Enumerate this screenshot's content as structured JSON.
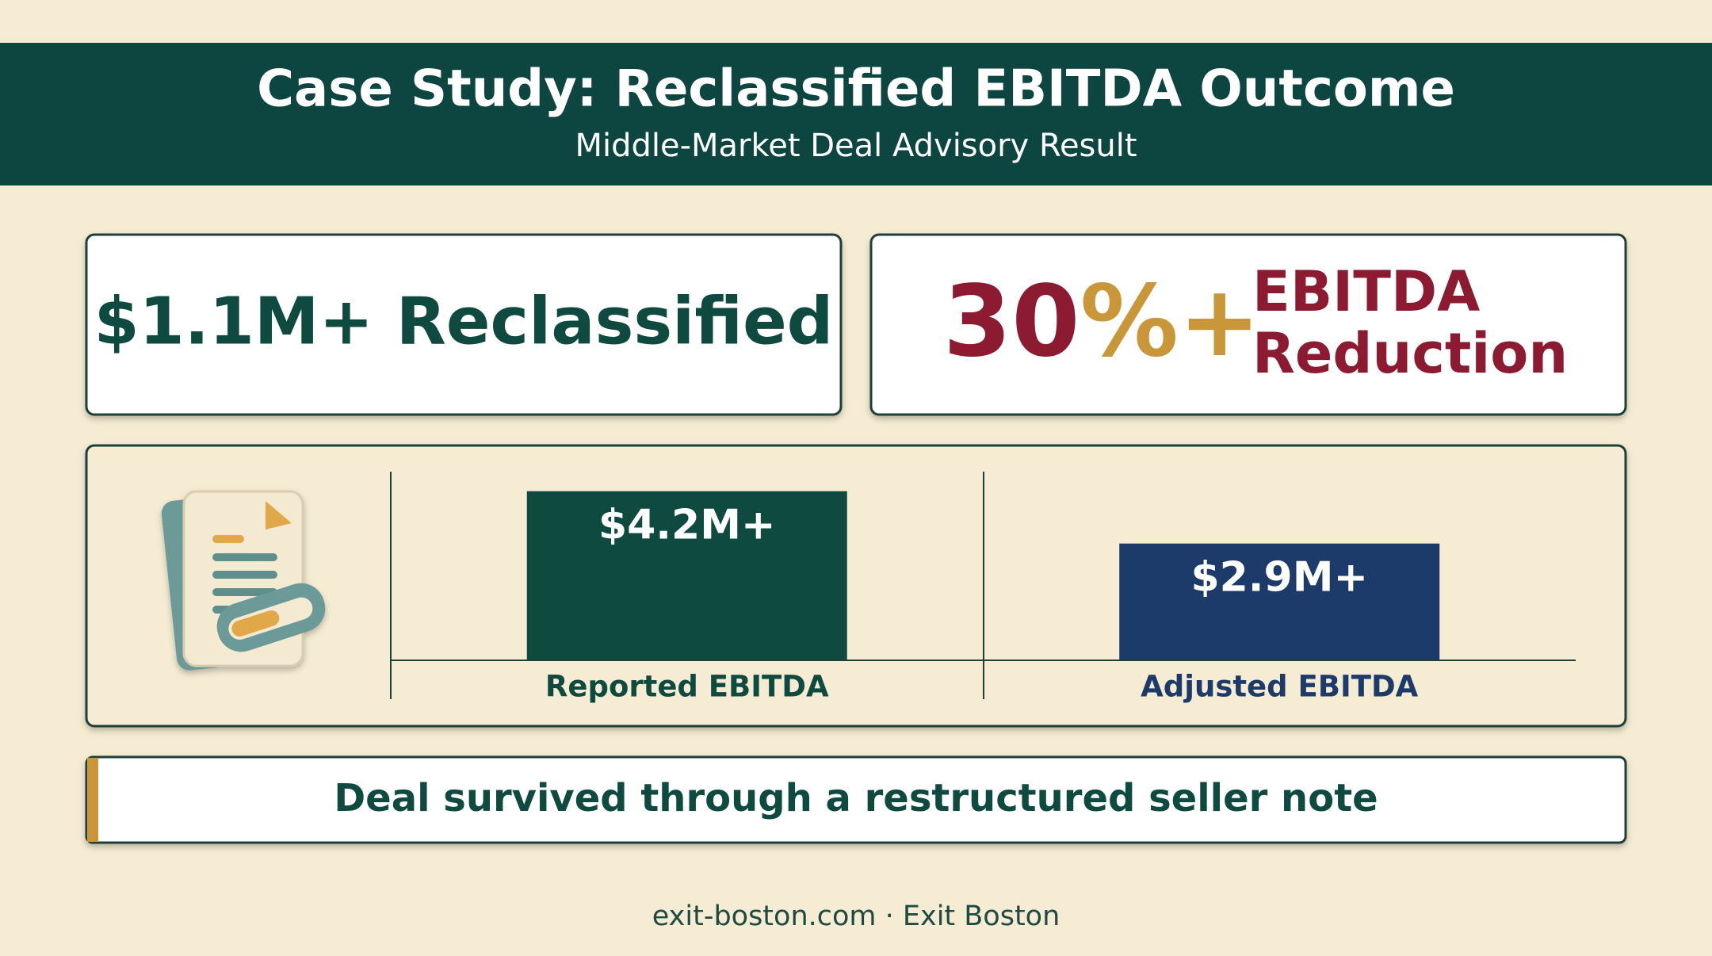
{
  "header": {
    "title": "Case Study: Reclassified EBITDA Outcome",
    "subtitle": "Middle-Market Deal Advisory Result"
  },
  "stats": {
    "reclassified": "$1.1M+ Reclassified",
    "reduction_number": "30",
    "reduction_suffix": "%+",
    "reduction_line1": "EBITDA",
    "reduction_line2": "Reduction"
  },
  "chart_data": {
    "type": "bar",
    "categories": [
      "Reported EBITDA",
      "Adjusted EBITDA"
    ],
    "values": [
      4.2,
      2.9
    ],
    "value_labels": [
      "$4.2M+",
      "$2.9M+"
    ],
    "colors": [
      "#0f4a40",
      "#1c3a6a"
    ]
  },
  "note": "Deal survived through a restructured seller note",
  "footer": "exit-boston.com · Exit Boston"
}
